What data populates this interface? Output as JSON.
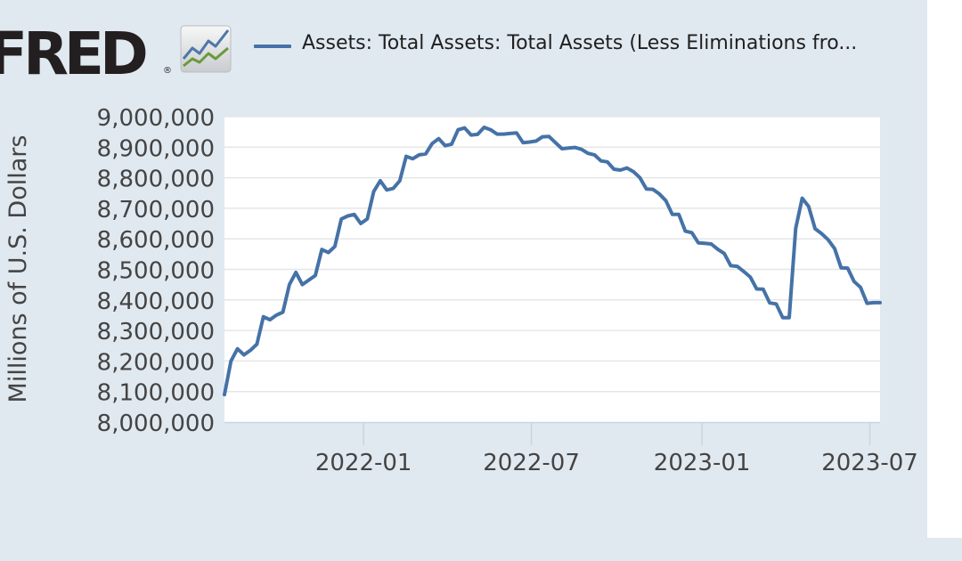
{
  "logo": {
    "wordmark": "FRED",
    "icon": "fred-graph-icon"
  },
  "chart_data": {
    "type": "line",
    "title": "",
    "xlabel": "",
    "ylabel": "Millions of U.S. Dollars",
    "ylim": [
      8000000,
      9000000
    ],
    "yticks": [
      8000000,
      8100000,
      8200000,
      8300000,
      8400000,
      8500000,
      8600000,
      8700000,
      8800000,
      8900000,
      9000000
    ],
    "ytick_labels": [
      "8,000,000",
      "8,100,000",
      "8,200,000",
      "8,300,000",
      "8,400,000",
      "8,500,000",
      "8,600,000",
      "8,700,000",
      "8,800,000",
      "8,900,000",
      "9,000,000"
    ],
    "xlim": [
      "2021-08-04",
      "2023-07-12"
    ],
    "xticks": [
      "2022-01-01",
      "2022-07-01",
      "2023-01-01",
      "2023-07-01"
    ],
    "xtick_labels": [
      "2022-01",
      "2022-07",
      "2023-01",
      "2023-07"
    ],
    "grid": true,
    "legend_position": "top",
    "series": [
      {
        "name": "Assets: Total Assets: Total Assets (Less Eliminations fro...",
        "color": "#4572a7",
        "x": [
          "2021-08-04",
          "2021-08-11",
          "2021-08-18",
          "2021-08-25",
          "2021-09-01",
          "2021-09-08",
          "2021-09-15",
          "2021-09-22",
          "2021-09-29",
          "2021-10-06",
          "2021-10-13",
          "2021-10-20",
          "2021-10-27",
          "2021-11-03",
          "2021-11-10",
          "2021-11-17",
          "2021-11-24",
          "2021-12-01",
          "2021-12-08",
          "2021-12-15",
          "2021-12-22",
          "2021-12-29",
          "2022-01-05",
          "2022-01-12",
          "2022-01-19",
          "2022-01-26",
          "2022-02-02",
          "2022-02-09",
          "2022-02-16",
          "2022-02-23",
          "2022-03-02",
          "2022-03-09",
          "2022-03-16",
          "2022-03-23",
          "2022-03-30",
          "2022-04-06",
          "2022-04-13",
          "2022-04-20",
          "2022-04-27",
          "2022-05-04",
          "2022-05-11",
          "2022-05-18",
          "2022-05-25",
          "2022-06-01",
          "2022-06-08",
          "2022-06-15",
          "2022-06-22",
          "2022-06-29",
          "2022-07-06",
          "2022-07-13",
          "2022-07-20",
          "2022-07-27",
          "2022-08-03",
          "2022-08-10",
          "2022-08-17",
          "2022-08-24",
          "2022-08-31",
          "2022-09-07",
          "2022-09-14",
          "2022-09-21",
          "2022-09-28",
          "2022-10-05",
          "2022-10-12",
          "2022-10-19",
          "2022-10-26",
          "2022-11-02",
          "2022-11-09",
          "2022-11-16",
          "2022-11-23",
          "2022-11-30",
          "2022-12-07",
          "2022-12-14",
          "2022-12-21",
          "2022-12-28",
          "2023-01-04",
          "2023-01-11",
          "2023-01-18",
          "2023-01-25",
          "2023-02-01",
          "2023-02-08",
          "2023-02-15",
          "2023-02-22",
          "2023-03-01",
          "2023-03-08",
          "2023-03-15",
          "2023-03-22",
          "2023-03-29",
          "2023-04-05",
          "2023-04-12",
          "2023-04-19",
          "2023-04-26",
          "2023-05-03",
          "2023-05-10",
          "2023-05-17",
          "2023-05-24",
          "2023-05-31",
          "2023-06-07",
          "2023-06-14",
          "2023-06-21",
          "2023-06-28",
          "2023-07-05",
          "2023-07-12"
        ],
        "y": [
          8090000,
          8200000,
          8240000,
          8220000,
          8235000,
          8255000,
          8345000,
          8335000,
          8350000,
          8360000,
          8450000,
          8490000,
          8450000,
          8465000,
          8480000,
          8565000,
          8555000,
          8575000,
          8665000,
          8675000,
          8680000,
          8650000,
          8665000,
          8755000,
          8790000,
          8760000,
          8765000,
          8790000,
          8870000,
          8862000,
          8875000,
          8878000,
          8912000,
          8928000,
          8905000,
          8910000,
          8957000,
          8963000,
          8940000,
          8942000,
          8965000,
          8957000,
          8943000,
          8943000,
          8945000,
          8947000,
          8915000,
          8917000,
          8920000,
          8934000,
          8935000,
          8915000,
          8895000,
          8897000,
          8899000,
          8893000,
          8880000,
          8875000,
          8855000,
          8852000,
          8828000,
          8825000,
          8832000,
          8820000,
          8800000,
          8763000,
          8762000,
          8747000,
          8725000,
          8680000,
          8680000,
          8625000,
          8620000,
          8587000,
          8585000,
          8583000,
          8566000,
          8552000,
          8512000,
          8510000,
          8493000,
          8475000,
          8436000,
          8435000,
          8390000,
          8387000,
          8342000,
          8342000,
          8634000,
          8733000,
          8706000,
          8633000,
          8617000,
          8597000,
          8568000,
          8505000,
          8504000,
          8460000,
          8441000,
          8389000,
          8391000,
          8391000
        ]
      }
    ]
  }
}
